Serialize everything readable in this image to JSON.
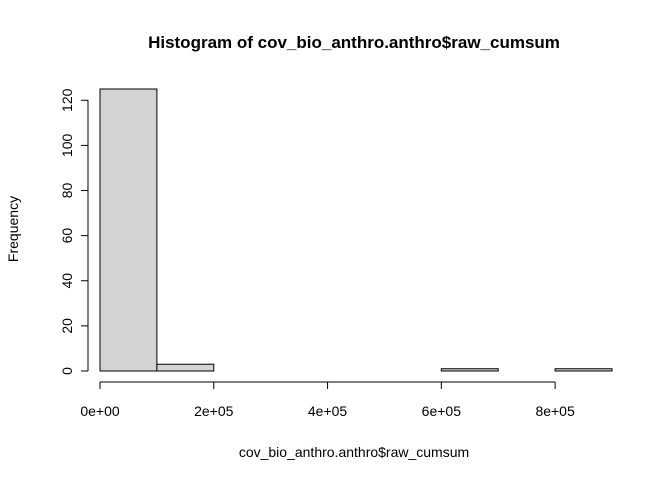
{
  "chart_data": {
    "type": "histogram",
    "title": "Histogram of cov_bio_anthro.anthro$raw_cumsum",
    "xlabel": "cov_bio_anthro.anthro$raw_cumsum",
    "ylabel": "Frequency",
    "bin_edges": [
      0,
      100000,
      200000,
      300000,
      400000,
      500000,
      600000,
      700000,
      800000,
      900000
    ],
    "counts": [
      125,
      3,
      0,
      0,
      0,
      0,
      1,
      0,
      1
    ],
    "xlim": [
      0,
      900000
    ],
    "ylim": [
      0,
      125
    ],
    "x_ticks": [
      {
        "value": 0,
        "label": "0e+00"
      },
      {
        "value": 200000,
        "label": "2e+05"
      },
      {
        "value": 400000,
        "label": "4e+05"
      },
      {
        "value": 600000,
        "label": "6e+05"
      },
      {
        "value": 800000,
        "label": "8e+05"
      }
    ],
    "y_ticks": [
      {
        "value": 0,
        "label": "0"
      },
      {
        "value": 20,
        "label": "20"
      },
      {
        "value": 40,
        "label": "40"
      },
      {
        "value": 60,
        "label": "60"
      },
      {
        "value": 80,
        "label": "80"
      },
      {
        "value": 100,
        "label": "100"
      },
      {
        "value": 120,
        "label": "120"
      }
    ],
    "bar_fill": "#d3d3d3",
    "bar_stroke": "#000000"
  }
}
